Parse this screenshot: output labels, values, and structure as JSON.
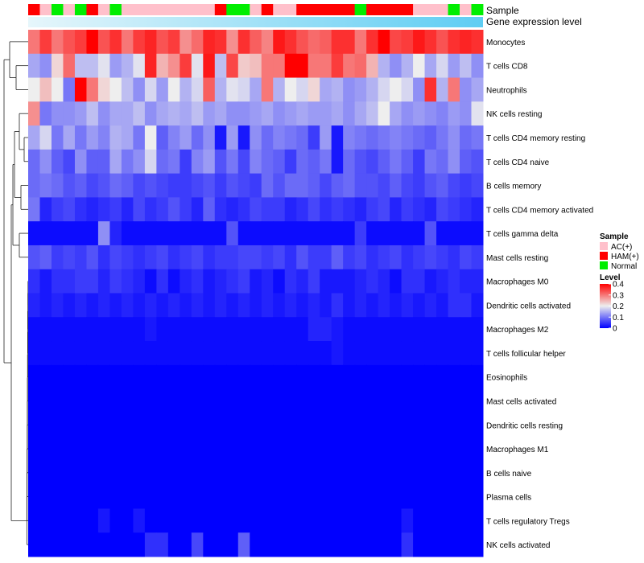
{
  "chart_data": {
    "type": "heatmap",
    "title": "",
    "annotations": [
      {
        "name": "Sample",
        "label": "Sample"
      },
      {
        "name": "Gene expression level",
        "label": "Gene expression level"
      }
    ],
    "sample_groups": [
      "HAM(+)",
      "AC(+)",
      "Normal",
      "AC(+)",
      "Normal",
      "HAM(+)",
      "AC(+)",
      "Normal",
      "AC(+)",
      "AC(+)",
      "AC(+)",
      "AC(+)",
      "AC(+)",
      "AC(+)",
      "AC(+)",
      "AC(+)",
      "HAM(+)",
      "Normal",
      "Normal",
      "AC(+)",
      "HAM(+)",
      "AC(+)",
      "AC(+)",
      "HAM(+)",
      "HAM(+)",
      "HAM(+)",
      "HAM(+)",
      "HAM(+)",
      "Normal",
      "HAM(+)",
      "HAM(+)",
      "HAM(+)",
      "HAM(+)",
      "AC(+)",
      "AC(+)",
      "AC(+)",
      "Normal",
      "AC(+)",
      "Normal"
    ],
    "expression_level": "increasing from left to right",
    "rows": [
      "Monocytes",
      "T cells CD8",
      "Neutrophils",
      "NK cells resting",
      "T cells CD4 memory resting",
      "T cells CD4 naive",
      "B cells memory",
      "T cells CD4 memory activated",
      "T cells gamma delta",
      "Mast cells resting",
      "Macrophages M0",
      "Dendritic cells activated",
      "Macrophages M2",
      "T cells follicular helper",
      "Eosinophils",
      "Mast cells activated",
      "Dendritic cells resting",
      "Macrophages M1",
      "B cells naive",
      "Plasma cells",
      "T cells regulatory  Tregs",
      "NK cells activated"
    ],
    "values": [
      [
        0.3,
        0.35,
        0.3,
        0.33,
        0.35,
        0.4,
        0.33,
        0.36,
        0.3,
        0.35,
        0.37,
        0.33,
        0.35,
        0.28,
        0.31,
        0.37,
        0.36,
        0.28,
        0.36,
        0.32,
        0.29,
        0.38,
        0.36,
        0.33,
        0.31,
        0.32,
        0.36,
        0.36,
        0.3,
        0.36,
        0.4,
        0.34,
        0.35,
        0.38,
        0.36,
        0.33,
        0.36,
        0.37,
        0.36
      ],
      [
        0.14,
        0.12,
        0.22,
        0.31,
        0.16,
        0.16,
        0.19,
        0.13,
        0.15,
        0.19,
        0.37,
        0.25,
        0.28,
        0.35,
        0.19,
        0.38,
        0.16,
        0.34,
        0.23,
        0.24,
        0.3,
        0.3,
        0.4,
        0.4,
        0.3,
        0.3,
        0.35,
        0.3,
        0.31,
        0.25,
        0.15,
        0.12,
        0.15,
        0.2,
        0.14,
        0.18,
        0.13,
        0.16,
        0.12
      ],
      [
        0.2,
        0.24,
        0.2,
        0.1,
        0.4,
        0.3,
        0.22,
        0.2,
        0.16,
        0.12,
        0.18,
        0.13,
        0.2,
        0.15,
        0.18,
        0.32,
        0.15,
        0.19,
        0.18,
        0.14,
        0.3,
        0.15,
        0.2,
        0.18,
        0.22,
        0.14,
        0.15,
        0.12,
        0.13,
        0.15,
        0.18,
        0.2,
        0.18,
        0.12,
        0.36,
        0.15,
        0.3,
        0.12,
        0.14
      ],
      [
        0.28,
        0.1,
        0.12,
        0.12,
        0.13,
        0.16,
        0.12,
        0.14,
        0.14,
        0.16,
        0.12,
        0.14,
        0.15,
        0.14,
        0.16,
        0.13,
        0.14,
        0.12,
        0.12,
        0.13,
        0.14,
        0.12,
        0.13,
        0.14,
        0.13,
        0.13,
        0.14,
        0.12,
        0.14,
        0.16,
        0.2,
        0.14,
        0.12,
        0.13,
        0.12,
        0.11,
        0.13,
        0.12,
        0.19
      ],
      [
        0.14,
        0.18,
        0.1,
        0.14,
        0.1,
        0.13,
        0.11,
        0.15,
        0.14,
        0.1,
        0.2,
        0.08,
        0.11,
        0.13,
        0.09,
        0.12,
        0.02,
        0.13,
        0.02,
        0.12,
        0.09,
        0.11,
        0.1,
        0.09,
        0.05,
        0.13,
        0.02,
        0.11,
        0.1,
        0.09,
        0.1,
        0.11,
        0.1,
        0.09,
        0.08,
        0.1,
        0.12,
        0.09,
        0.1
      ],
      [
        0.09,
        0.12,
        0.08,
        0.06,
        0.12,
        0.08,
        0.08,
        0.14,
        0.1,
        0.12,
        0.18,
        0.09,
        0.1,
        0.05,
        0.11,
        0.13,
        0.07,
        0.1,
        0.06,
        0.11,
        0.09,
        0.08,
        0.05,
        0.09,
        0.08,
        0.1,
        0.02,
        0.09,
        0.07,
        0.06,
        0.08,
        0.1,
        0.08,
        0.05,
        0.1,
        0.09,
        0.12,
        0.08,
        0.07
      ],
      [
        0.09,
        0.1,
        0.09,
        0.07,
        0.08,
        0.06,
        0.07,
        0.09,
        0.08,
        0.06,
        0.07,
        0.06,
        0.05,
        0.05,
        0.06,
        0.07,
        0.05,
        0.07,
        0.06,
        0.05,
        0.09,
        0.07,
        0.09,
        0.09,
        0.08,
        0.06,
        0.08,
        0.09,
        0.07,
        0.07,
        0.06,
        0.08,
        0.06,
        0.05,
        0.07,
        0.08,
        0.06,
        0.05,
        0.06
      ],
      [
        0.1,
        0.03,
        0.05,
        0.06,
        0.04,
        0.03,
        0.04,
        0.05,
        0.03,
        0.06,
        0.04,
        0.05,
        0.07,
        0.05,
        0.03,
        0.08,
        0.04,
        0.03,
        0.04,
        0.06,
        0.05,
        0.05,
        0.03,
        0.04,
        0.06,
        0.04,
        0.05,
        0.04,
        0.03,
        0.05,
        0.06,
        0.03,
        0.05,
        0.04,
        0.03,
        0.06,
        0.05,
        0.04,
        0.03
      ],
      [
        0.01,
        0.01,
        0.01,
        0.01,
        0.01,
        0.01,
        0.12,
        0.03,
        0.01,
        0.01,
        0.01,
        0.01,
        0.01,
        0.01,
        0.01,
        0.01,
        0.01,
        0.07,
        0.01,
        0.01,
        0.01,
        0.01,
        0.01,
        0.01,
        0.01,
        0.01,
        0.01,
        0.01,
        0.05,
        0.01,
        0.01,
        0.01,
        0.01,
        0.01,
        0.07,
        0.01,
        0.01,
        0.01,
        0.01
      ],
      [
        0.07,
        0.08,
        0.05,
        0.06,
        0.05,
        0.07,
        0.04,
        0.06,
        0.05,
        0.04,
        0.05,
        0.06,
        0.04,
        0.05,
        0.06,
        0.04,
        0.05,
        0.05,
        0.06,
        0.06,
        0.05,
        0.06,
        0.04,
        0.07,
        0.05,
        0.05,
        0.08,
        0.05,
        0.06,
        0.04,
        0.05,
        0.06,
        0.04,
        0.05,
        0.06,
        0.05,
        0.04,
        0.06,
        0.05
      ],
      [
        0.04,
        0.02,
        0.04,
        0.04,
        0.05,
        0.05,
        0.03,
        0.05,
        0.04,
        0.03,
        0.01,
        0.04,
        0.01,
        0.03,
        0.04,
        0.02,
        0.03,
        0.04,
        0.05,
        0.02,
        0.03,
        0.01,
        0.04,
        0.03,
        0.05,
        0.02,
        0.02,
        0.02,
        0.03,
        0.04,
        0.03,
        0.01,
        0.04,
        0.04,
        0.02,
        0.03,
        0.04,
        0.03,
        0.03
      ],
      [
        0.03,
        0.02,
        0.03,
        0.02,
        0.03,
        0.02,
        0.03,
        0.02,
        0.03,
        0.02,
        0.03,
        0.02,
        0.03,
        0.02,
        0.03,
        0.02,
        0.03,
        0.02,
        0.03,
        0.02,
        0.03,
        0.02,
        0.03,
        0.02,
        0.03,
        0.02,
        0.04,
        0.02,
        0.03,
        0.02,
        0.03,
        0.02,
        0.03,
        0.02,
        0.03,
        0.02,
        0.04,
        0.04,
        0.02
      ],
      [
        0.01,
        0.01,
        0.01,
        0.01,
        0.01,
        0.01,
        0.01,
        0.01,
        0.01,
        0.01,
        0.02,
        0.01,
        0.01,
        0.01,
        0.01,
        0.01,
        0.01,
        0.01,
        0.01,
        0.01,
        0.01,
        0.01,
        0.01,
        0.01,
        0.03,
        0.03,
        0.02,
        0.01,
        0.01,
        0.01,
        0.01,
        0.01,
        0.01,
        0.01,
        0.01,
        0.01,
        0.01,
        0.01,
        0.01
      ],
      [
        0.01,
        0.01,
        0.01,
        0.01,
        0.01,
        0.01,
        0.01,
        0.01,
        0.01,
        0.01,
        0.01,
        0.01,
        0.01,
        0.01,
        0.01,
        0.01,
        0.01,
        0.01,
        0.01,
        0.01,
        0.01,
        0.01,
        0.01,
        0.01,
        0.01,
        0.01,
        0.02,
        0.01,
        0.01,
        0.01,
        0.01,
        0.01,
        0.01,
        0.01,
        0.01,
        0.01,
        0.01,
        0.01,
        0.01
      ],
      [
        0.0,
        0.0,
        0.0,
        0.0,
        0.0,
        0.0,
        0.0,
        0.0,
        0.0,
        0.0,
        0.0,
        0.0,
        0.0,
        0.0,
        0.0,
        0.0,
        0.0,
        0.0,
        0.0,
        0.0,
        0.0,
        0.0,
        0.0,
        0.0,
        0.0,
        0.0,
        0.0,
        0.0,
        0.0,
        0.0,
        0.0,
        0.0,
        0.0,
        0.0,
        0.0,
        0.0,
        0.0,
        0.0,
        0.0
      ],
      [
        0.0,
        0.0,
        0.0,
        0.0,
        0.0,
        0.0,
        0.0,
        0.0,
        0.0,
        0.0,
        0.0,
        0.0,
        0.0,
        0.0,
        0.0,
        0.0,
        0.0,
        0.0,
        0.0,
        0.0,
        0.0,
        0.0,
        0.0,
        0.0,
        0.0,
        0.0,
        0.0,
        0.0,
        0.0,
        0.0,
        0.0,
        0.0,
        0.0,
        0.0,
        0.0,
        0.0,
        0.0,
        0.0,
        0.0
      ],
      [
        0.0,
        0.0,
        0.0,
        0.0,
        0.0,
        0.0,
        0.0,
        0.0,
        0.0,
        0.0,
        0.0,
        0.0,
        0.0,
        0.0,
        0.0,
        0.0,
        0.0,
        0.0,
        0.0,
        0.0,
        0.0,
        0.0,
        0.0,
        0.0,
        0.0,
        0.0,
        0.0,
        0.0,
        0.0,
        0.0,
        0.0,
        0.0,
        0.0,
        0.0,
        0.0,
        0.0,
        0.0,
        0.0,
        0.0
      ],
      [
        0.0,
        0.0,
        0.0,
        0.0,
        0.0,
        0.0,
        0.0,
        0.0,
        0.0,
        0.0,
        0.0,
        0.0,
        0.0,
        0.0,
        0.0,
        0.0,
        0.0,
        0.0,
        0.0,
        0.0,
        0.0,
        0.0,
        0.0,
        0.0,
        0.0,
        0.0,
        0.0,
        0.0,
        0.0,
        0.0,
        0.0,
        0.0,
        0.0,
        0.0,
        0.0,
        0.0,
        0.0,
        0.0,
        0.0
      ],
      [
        0.0,
        0.0,
        0.0,
        0.0,
        0.0,
        0.0,
        0.0,
        0.0,
        0.0,
        0.0,
        0.0,
        0.0,
        0.0,
        0.0,
        0.0,
        0.0,
        0.0,
        0.0,
        0.0,
        0.0,
        0.0,
        0.0,
        0.0,
        0.0,
        0.0,
        0.0,
        0.0,
        0.0,
        0.0,
        0.0,
        0.0,
        0.0,
        0.0,
        0.0,
        0.0,
        0.0,
        0.0,
        0.0,
        0.0
      ],
      [
        0.0,
        0.0,
        0.0,
        0.0,
        0.0,
        0.0,
        0.0,
        0.0,
        0.0,
        0.0,
        0.0,
        0.0,
        0.0,
        0.0,
        0.0,
        0.0,
        0.0,
        0.0,
        0.0,
        0.0,
        0.0,
        0.0,
        0.0,
        0.0,
        0.0,
        0.0,
        0.0,
        0.0,
        0.0,
        0.0,
        0.0,
        0.0,
        0.0,
        0.0,
        0.0,
        0.0,
        0.0,
        0.0,
        0.0
      ],
      [
        0.0,
        0.0,
        0.0,
        0.0,
        0.0,
        0.0,
        0.02,
        0.0,
        0.0,
        0.02,
        0.0,
        0.0,
        0.0,
        0.0,
        0.0,
        0.0,
        0.0,
        0.0,
        0.0,
        0.0,
        0.0,
        0.0,
        0.0,
        0.0,
        0.0,
        0.0,
        0.0,
        0.0,
        0.0,
        0.0,
        0.0,
        0.0,
        0.02,
        0.0,
        0.0,
        0.0,
        0.0,
        0.0,
        0.0
      ],
      [
        0.0,
        0.0,
        0.0,
        0.0,
        0.0,
        0.0,
        0.0,
        0.0,
        0.0,
        0.0,
        0.04,
        0.04,
        0.0,
        0.0,
        0.06,
        0.0,
        0.0,
        0.0,
        0.08,
        0.0,
        0.0,
        0.0,
        0.0,
        0.0,
        0.0,
        0.0,
        0.0,
        0.0,
        0.0,
        0.0,
        0.0,
        0.0,
        0.04,
        0.0,
        0.0,
        0.0,
        0.0,
        0.0,
        0.0
      ]
    ],
    "legend": {
      "sample": {
        "title": "Sample",
        "entries": [
          {
            "label": "AC(+)",
            "color": "#ffc0cb"
          },
          {
            "label": "HAM(+)",
            "color": "#ff0000"
          },
          {
            "label": "Normal",
            "color": "#00ee00"
          }
        ]
      },
      "level": {
        "title": "Level",
        "ticks": [
          "0.4",
          "0.3",
          "0.2",
          "0.1",
          "0"
        ],
        "tick_values": [
          0.4,
          0.3,
          0.2,
          0.1,
          0
        ],
        "range": [
          0,
          0.4
        ],
        "colors": {
          "low": "#0000ff",
          "mid": "#eeeeee",
          "high": "#ff0000"
        }
      }
    },
    "expression_bar_colors": {
      "start": "#e6f6fb",
      "end": "#5ecdf3"
    },
    "dendrogram_color": "#222222"
  }
}
